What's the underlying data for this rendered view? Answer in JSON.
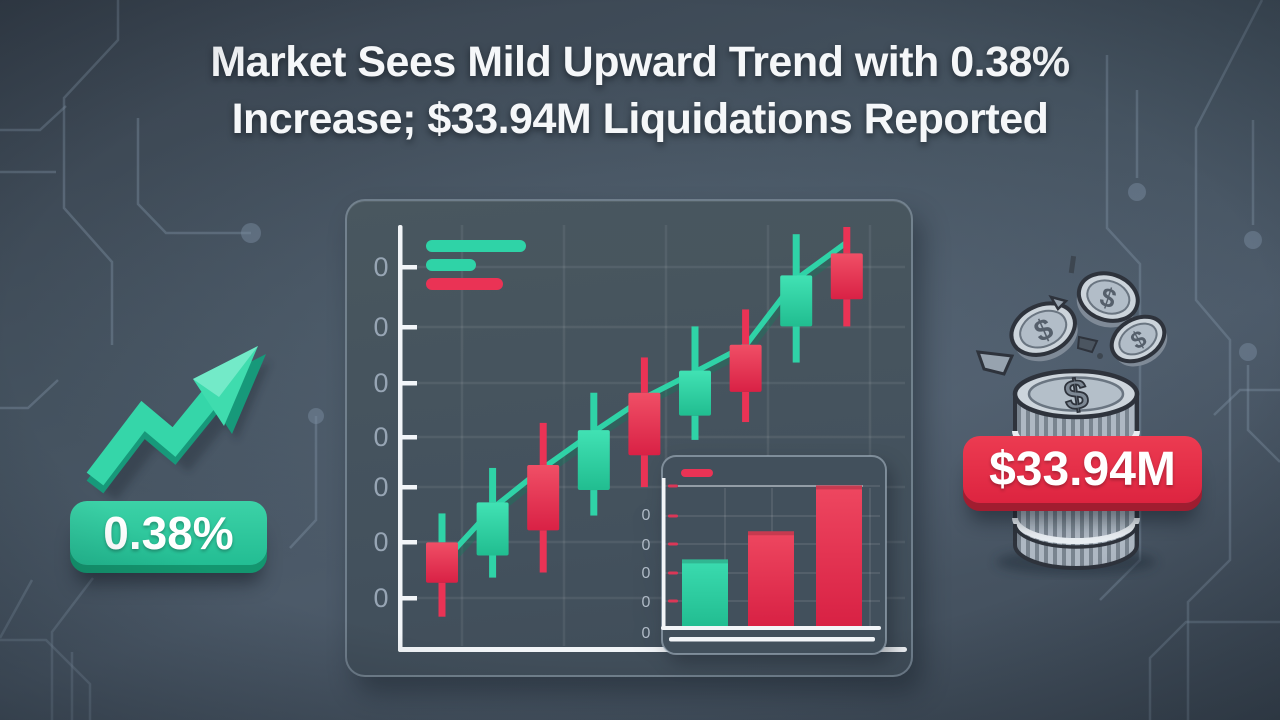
{
  "headline": {
    "line1": "Market Sees Mild Upward Trend with 0.38%",
    "line2": "Increase; $33.94M Liquidations Reported"
  },
  "badges": {
    "percent_change": "0.38%",
    "liquidations": "$33.94M"
  },
  "icons": {
    "uptrend_arrow": "zigzag-up-right-arrow",
    "coin_stack": "stack-of-dollar-coins",
    "coin_symbol": "$"
  },
  "colors": {
    "up_green": "#2FD3A7",
    "down_red": "#EA3355",
    "badge_green": "#2BC79E",
    "badge_red": "#E63147",
    "background": "#46566A",
    "panel": "#43515F",
    "axis_white": "#F2F5F8",
    "label_gray": "#97A5B4",
    "inset_label_gray": "#AEB9C5"
  },
  "chart_data": [
    {
      "type": "candlestick",
      "title": "",
      "xlabel": "",
      "ylabel": "",
      "ylim": [
        0,
        100
      ],
      "grid": true,
      "legend_position": "top-left",
      "y_axis_tick_labels": [
        "0",
        "0",
        "0",
        "0",
        "0",
        "0",
        "0"
      ],
      "legend_swatches": [
        {
          "color_key": "up_green",
          "length": "long"
        },
        {
          "color_key": "up_green",
          "length": "short"
        },
        {
          "color_key": "down_red",
          "length": "medium"
        }
      ],
      "candles": [
        {
          "x": 1,
          "open": 25.1,
          "high": 31.9,
          "low": 7.6,
          "close": 15.6
        },
        {
          "x": 2,
          "open": 22.0,
          "high": 42.6,
          "low": 16.8,
          "close": 34.5
        },
        {
          "x": 3,
          "open": 43.3,
          "high": 53.2,
          "low": 18.0,
          "close": 27.9
        },
        {
          "x": 4,
          "open": 37.4,
          "high": 60.3,
          "low": 31.4,
          "close": 51.5
        },
        {
          "x": 5,
          "open": 60.3,
          "high": 68.6,
          "low": 38.1,
          "close": 45.6
        },
        {
          "x": 6,
          "open": 54.9,
          "high": 75.9,
          "low": 49.2,
          "close": 65.5
        },
        {
          "x": 7,
          "open": 71.6,
          "high": 79.9,
          "low": 53.4,
          "close": 60.5
        },
        {
          "x": 8,
          "open": 75.9,
          "high": 97.6,
          "low": 67.4,
          "close": 87.9
        },
        {
          "x": 9,
          "open": 93.1,
          "high": 99.3,
          "low": 75.9,
          "close": 82.3
        }
      ],
      "trendline": [
        20.1,
        33.1,
        42.6,
        51.1,
        59.1,
        65.2,
        71.4,
        87.0,
        95.7
      ]
    },
    {
      "type": "bar",
      "title": "",
      "xlabel": "",
      "ylabel": "",
      "categories": [
        "1",
        "2",
        "3"
      ],
      "values": [
        45,
        64,
        95
      ],
      "bar_colors": [
        "up_green",
        "down_red",
        "down_red"
      ],
      "ylim": [
        0,
        100
      ],
      "grid": true,
      "legend_position": "top-left",
      "y_axis_tick_labels": [
        "0",
        "0",
        "0",
        "0",
        "0"
      ],
      "legend_swatches": [
        {
          "color_key": "down_red",
          "length": "short"
        }
      ]
    }
  ]
}
